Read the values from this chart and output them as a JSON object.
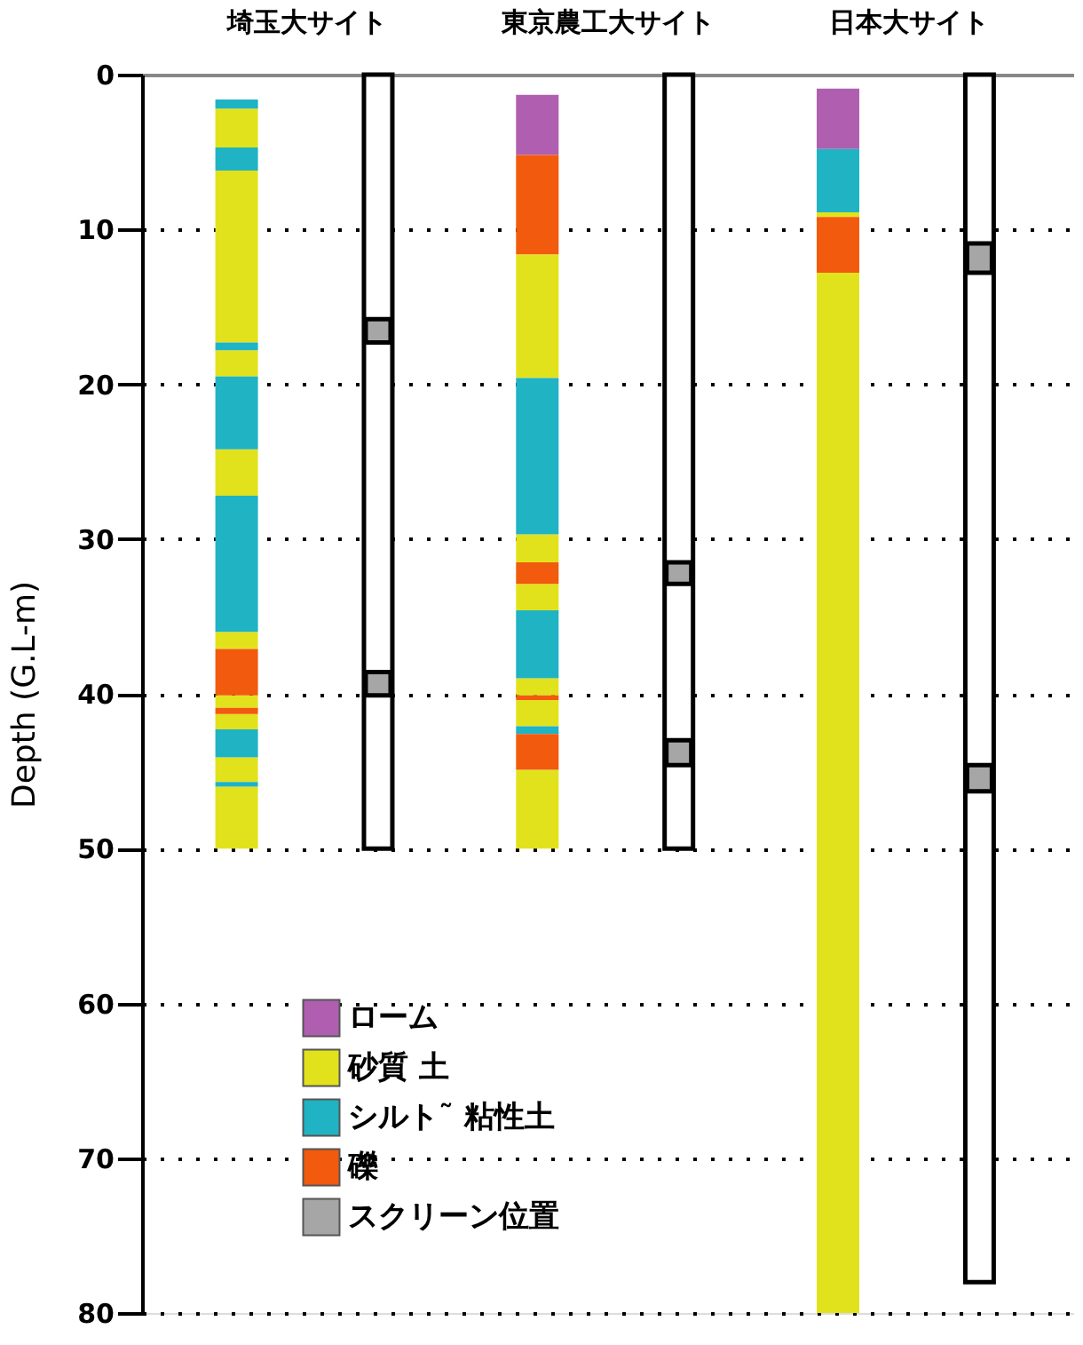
{
  "chart_data": {
    "type": "bar",
    "ylabel": "Depth (G.L-m)",
    "categories": [
      "埼玉大サイト",
      "東京農工大サイト",
      "日本大サイト"
    ],
    "series": [
      {
        "name": "ローム",
        "color": "#b05fb0",
        "x": [
          "東京農工大サイト",
          "日本大サイト"
        ],
        "base": [
          1.3,
          0.9
        ],
        "values": [
          3.9,
          3.9
        ]
      },
      {
        "name": "砂質 土",
        "color": "#e2e21c",
        "x": [
          "埼玉大サイト",
          "埼玉大サイト",
          "埼玉大サイト",
          "埼玉大サイト",
          "埼玉大サイト",
          "埼玉大サイト",
          "埼玉大サイト",
          "埼玉大サイト",
          "埼玉大サイト",
          "東京農工大サイト",
          "東京農工大サイト",
          "東京農工大サイト",
          "東京農工大サイト",
          "東京農工大サイト",
          "東京農工大サイト",
          "日本大サイト",
          "日本大サイト"
        ],
        "base": [
          2.2,
          6.2,
          17.8,
          24.2,
          36.0,
          40.1,
          41.3,
          44.1,
          46.0,
          11.6,
          29.7,
          32.9,
          39.0,
          40.4,
          44.9,
          8.9,
          12.8
        ],
        "values": [
          2.5,
          11.1,
          1.7,
          3.0,
          1.1,
          0.8,
          1.0,
          1.6,
          4.0,
          8.0,
          1.8,
          1.7,
          1.1,
          1.7,
          5.1,
          0.3,
          67.2
        ]
      },
      {
        "name": "シルト˜ 粘性土",
        "color": "#1fb3c4",
        "x": [
          "埼玉大サイト",
          "埼玉大サイト",
          "埼玉大サイト",
          "埼玉大サイト",
          "埼玉大サイト",
          "埼玉大サイト",
          "埼玉大サイト",
          "東京農工大サイト",
          "東京農工大サイト",
          "東京農工大サイト",
          "日本大サイト"
        ],
        "base": [
          1.6,
          4.7,
          17.3,
          19.5,
          27.2,
          42.3,
          45.7,
          19.6,
          34.6,
          42.1,
          4.8
        ],
        "values": [
          0.6,
          1.5,
          0.5,
          4.7,
          8.8,
          1.8,
          0.3,
          10.1,
          4.4,
          0.5,
          4.1
        ]
      },
      {
        "name": "礫",
        "color": "#f25a0d",
        "x": [
          "埼玉大サイト",
          "埼玉大サイト",
          "東京農工大サイト",
          "東京農工大サイト",
          "東京農工大サイト",
          "東京農工大サイト",
          "日本大サイト"
        ],
        "base": [
          37.1,
          40.9,
          5.2,
          31.5,
          40.1,
          42.6,
          9.2
        ],
        "values": [
          3.0,
          0.4,
          6.4,
          1.4,
          0.3,
          2.3,
          3.6
        ]
      },
      {
        "name": "スクリーン位置",
        "color": "#a6a6a6",
        "x": [
          "埼玉大サイト",
          "埼玉大サイト",
          "東京農工大サイト",
          "東京農工大サイト",
          "日本大サイト",
          "日本大サイト"
        ],
        "base": [
          15.8,
          38.6,
          31.5,
          43.0,
          10.9,
          44.6
        ],
        "values": [
          1.5,
          1.5,
          1.4,
          1.6,
          1.9,
          1.7
        ]
      },
      {
        "name": null,
        "color": "#ffffff",
        "x": [
          "埼玉大サイト",
          "東京農工大サイト",
          "日本大サイト"
        ],
        "base": [
          0,
          0,
          0
        ],
        "values": [
          50,
          50,
          78
        ]
      }
    ],
    "ylim": [
      80,
      0
    ],
    "yticks": [
      0,
      10,
      20,
      30,
      40,
      50,
      60,
      70,
      80
    ],
    "grid": "y",
    "legend": "bottom left"
  }
}
